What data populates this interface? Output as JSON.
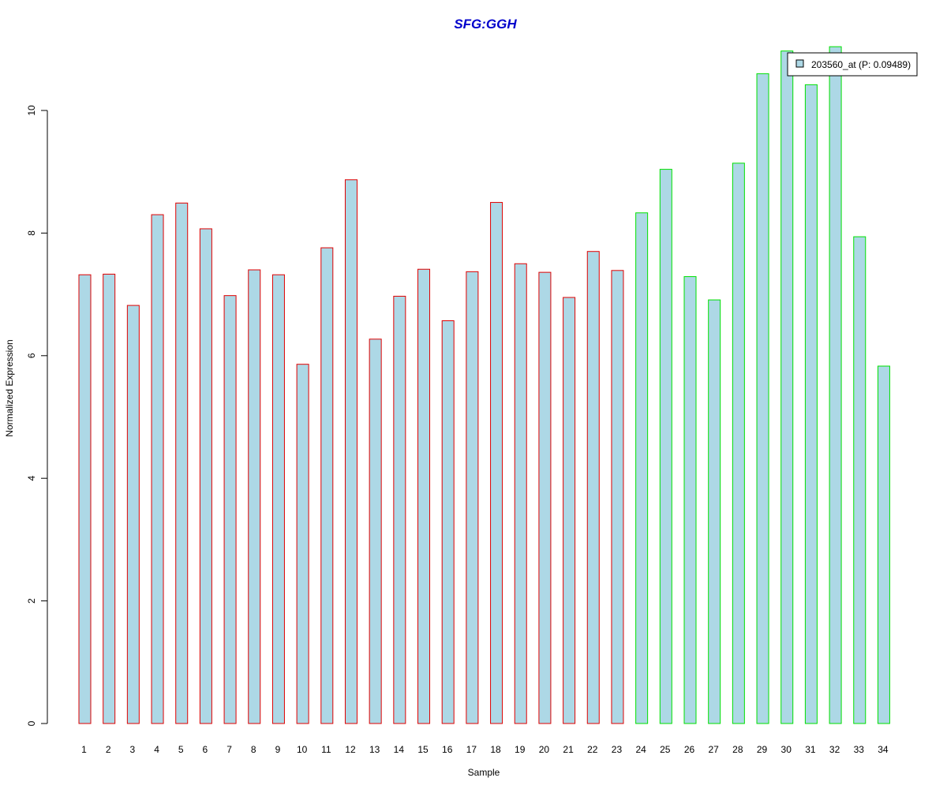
{
  "chart_data": {
    "type": "bar",
    "title": "SFG:GGH",
    "xlabel": "Sample",
    "ylabel": "Normalized Expression",
    "ylim": [
      0,
      11.2
    ],
    "yticks": [
      0,
      2,
      4,
      6,
      8,
      10
    ],
    "grid": false,
    "categories": [
      "1",
      "2",
      "3",
      "4",
      "5",
      "6",
      "7",
      "8",
      "9",
      "10",
      "11",
      "12",
      "13",
      "14",
      "15",
      "16",
      "17",
      "18",
      "19",
      "20",
      "21",
      "22",
      "23",
      "24",
      "25",
      "26",
      "27",
      "28",
      "29",
      "30",
      "31",
      "32",
      "33",
      "34"
    ],
    "values": [
      7.32,
      7.33,
      6.82,
      8.3,
      8.49,
      8.07,
      6.98,
      7.4,
      7.32,
      5.86,
      7.76,
      8.87,
      6.27,
      6.97,
      7.41,
      6.57,
      7.37,
      8.5,
      7.5,
      7.36,
      6.95,
      7.7,
      7.39,
      8.33,
      9.04,
      7.29,
      6.91,
      9.14,
      10.6,
      10.97,
      10.42,
      11.04,
      7.94,
      5.83
    ],
    "series": [
      {
        "name": "203560_at (P: 0.09489)",
        "values": [
          7.32,
          7.33,
          6.82,
          8.3,
          8.49,
          8.07,
          6.98,
          7.4,
          7.32,
          5.86,
          7.76,
          8.87,
          6.27,
          6.97,
          7.41,
          6.57,
          7.37,
          8.5,
          7.5,
          7.36,
          6.95,
          7.7,
          7.39,
          8.33,
          9.04,
          7.29,
          6.91,
          9.14,
          10.6,
          10.97,
          10.42,
          11.04,
          7.94,
          5.83
        ]
      }
    ],
    "groups": [
      {
        "samples": [
          1,
          23
        ],
        "border_color": "#e00000"
      },
      {
        "samples": [
          24,
          34
        ],
        "border_color": "#00e000"
      }
    ],
    "bar_fill": "#add8e6",
    "title_color": "#0000cc",
    "legend": {
      "label": "203560_at (P: 0.09489)",
      "placement": "top-right"
    }
  }
}
